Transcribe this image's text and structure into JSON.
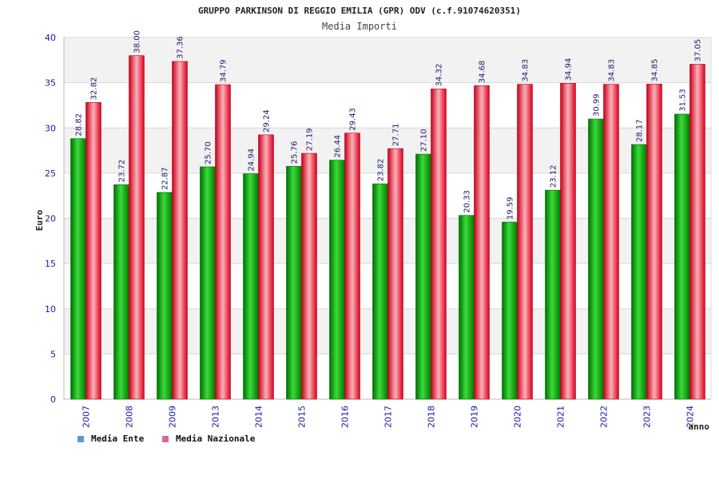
{
  "chart_data": {
    "type": "bar",
    "title": "GRUPPO PARKINSON DI REGGIO EMILIA (GPR) ODV (c.f.91074620351)",
    "subtitle": "Media Importi",
    "ylabel": "Euro",
    "xlabel": "anno",
    "ylim": [
      0,
      40
    ],
    "yticks": [
      0,
      5,
      10,
      15,
      20,
      25,
      30,
      35,
      40
    ],
    "grid": true,
    "legend_position": "bottom-left",
    "categories": [
      "2007",
      "2008",
      "2009",
      "2013",
      "2014",
      "2015",
      "2016",
      "2017",
      "2018",
      "2019",
      "2020",
      "2021",
      "2022",
      "2023",
      "2024"
    ],
    "series": [
      {
        "name": "Media Ente",
        "legend_color": "#5b9bd5",
        "bar_color": "#0aa50a",
        "values": [
          28.82,
          23.72,
          22.87,
          25.7,
          24.94,
          25.76,
          26.44,
          23.82,
          27.1,
          20.33,
          19.59,
          23.12,
          30.99,
          28.17,
          31.53
        ],
        "labels": [
          "28.82",
          "23.72",
          "22.87",
          "25.70",
          "24.94",
          "25.76",
          "26.44",
          "23.82",
          "27.10",
          "20.33",
          "19.59",
          "23.12",
          "30.99",
          "28.17",
          "31.53"
        ]
      },
      {
        "name": "Media Nazionale",
        "legend_color": "#d46a9e",
        "bar_color": "#e8202a",
        "values": [
          32.82,
          38.0,
          37.36,
          34.79,
          29.24,
          27.19,
          29.43,
          27.71,
          34.32,
          34.68,
          34.83,
          34.94,
          34.83,
          34.85,
          37.05
        ],
        "labels": [
          "32.82",
          "38.00",
          "37.36",
          "34.79",
          "29.24",
          "27.19",
          "29.43",
          "27.71",
          "34.32",
          "34.68",
          "34.83",
          "34.94",
          "34.83",
          "34.85",
          "37.05"
        ]
      }
    ]
  }
}
